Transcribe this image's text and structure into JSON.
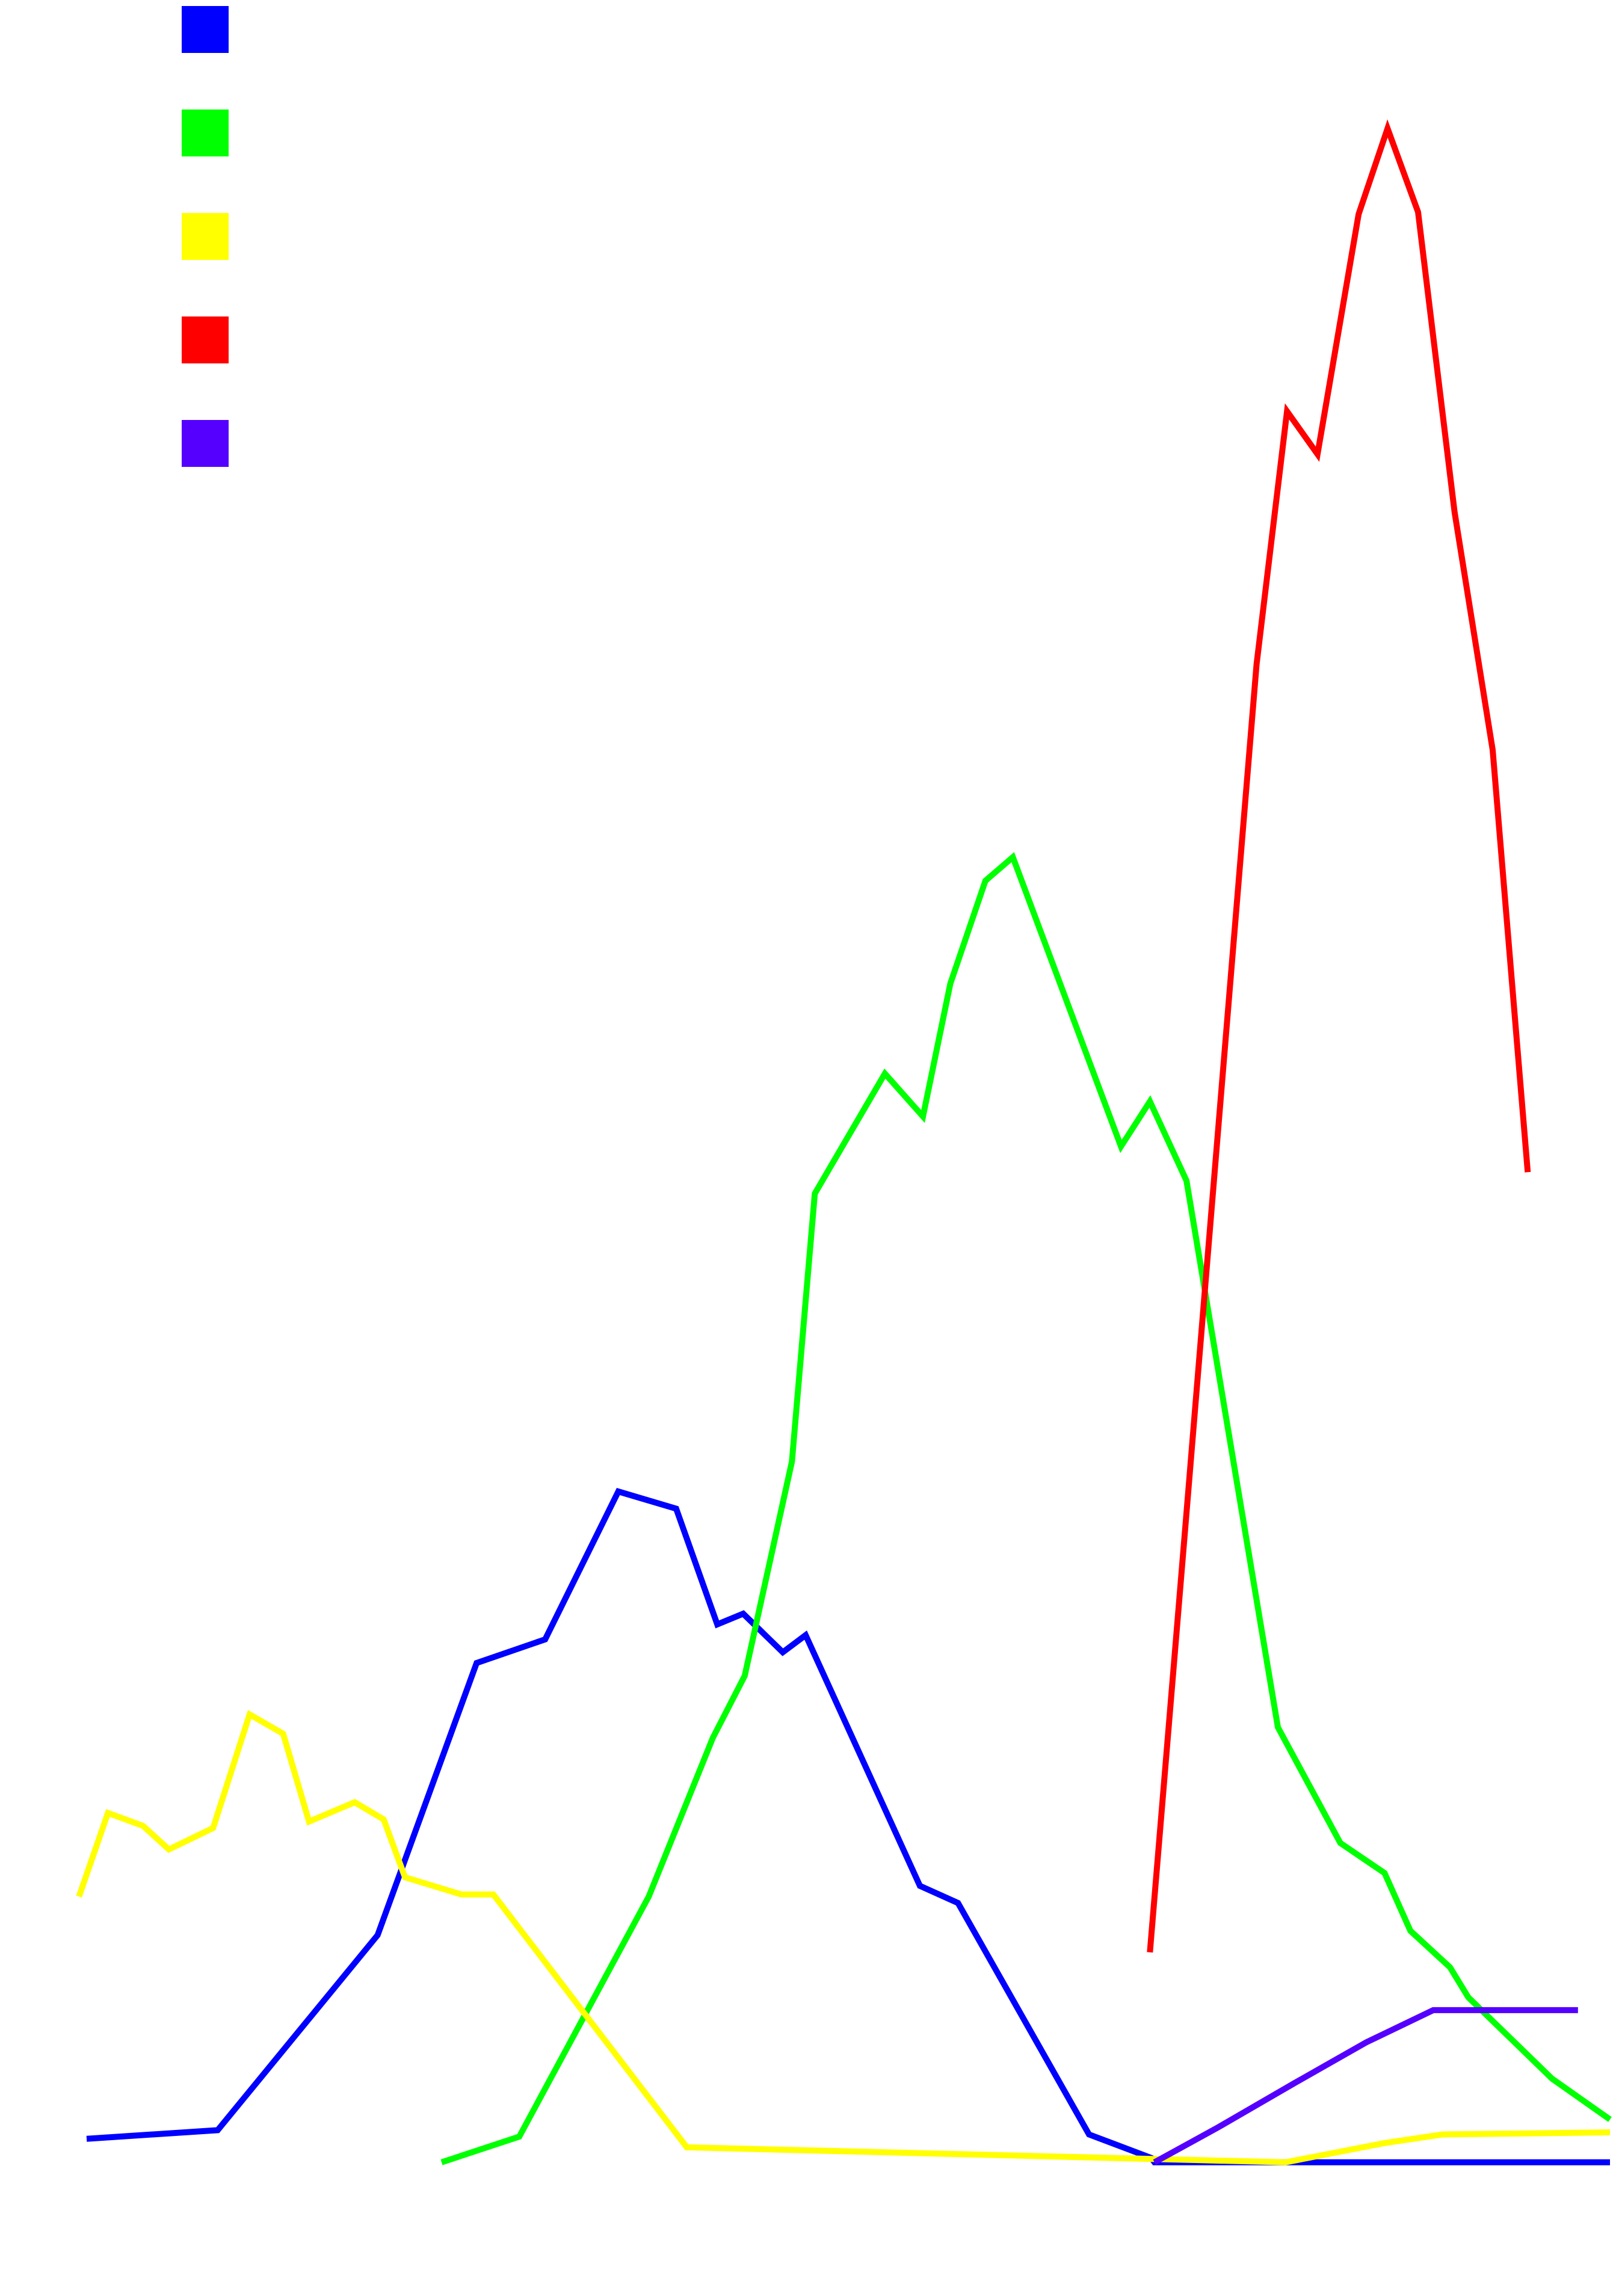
{
  "chart_data": {
    "type": "line",
    "title": "",
    "xlabel": "",
    "ylabel": "",
    "grid": false,
    "axes_visible": false,
    "legend_placement": "top-left",
    "xlim": [
      0,
      100
    ],
    "ylim": [
      0,
      100
    ],
    "series": [
      {
        "color": "#0000ff",
        "points": [
          [
            0,
            5.4
          ],
          [
            8.6,
            5.8
          ],
          [
            19.1,
            14.9
          ],
          [
            25.6,
            27.6
          ],
          [
            30.1,
            28.7
          ],
          [
            34.9,
            35.6
          ],
          [
            38.7,
            34.8
          ],
          [
            41.4,
            29.4
          ],
          [
            43.1,
            29.9
          ],
          [
            45.7,
            28.1
          ],
          [
            47.2,
            28.9
          ],
          [
            54.7,
            17.2
          ],
          [
            57.2,
            16.4
          ],
          [
            65.8,
            5.6
          ],
          [
            69.9,
            4.5
          ],
          [
            70.1,
            4.3
          ],
          [
            100,
            4.3
          ]
        ]
      },
      {
        "color": "#00ff00",
        "points": [
          [
            23.3,
            4.3
          ],
          [
            28.4,
            5.5
          ],
          [
            36.9,
            16.7
          ],
          [
            41.1,
            24.1
          ],
          [
            43.2,
            27.0
          ],
          [
            46.3,
            37.0
          ],
          [
            47.8,
            49.5
          ],
          [
            52.4,
            55.1
          ],
          [
            54.9,
            53.1
          ],
          [
            56.7,
            59.3
          ],
          [
            59.0,
            64.1
          ],
          [
            60.8,
            65.2
          ],
          [
            67.9,
            51.7
          ],
          [
            69.8,
            53.8
          ],
          [
            72.2,
            50.1
          ],
          [
            78.2,
            24.6
          ],
          [
            82.3,
            19.2
          ],
          [
            85.2,
            17.8
          ],
          [
            86.9,
            15.1
          ],
          [
            89.5,
            13.4
          ],
          [
            90.7,
            12.0
          ],
          [
            96.2,
            8.2
          ],
          [
            100,
            6.3
          ]
        ]
      },
      {
        "color": "#ffff00",
        "points": [
          [
            -0.5,
            16.7
          ],
          [
            1.4,
            20.6
          ],
          [
            3.7,
            20.0
          ],
          [
            5.4,
            18.9
          ],
          [
            8.3,
            19.9
          ],
          [
            10.7,
            25.2
          ],
          [
            12.9,
            24.3
          ],
          [
            14.6,
            20.2
          ],
          [
            17.6,
            21.1
          ],
          [
            19.5,
            20.3
          ],
          [
            20.9,
            17.6
          ],
          [
            24.6,
            16.8
          ],
          [
            26.7,
            16.8
          ],
          [
            39.4,
            5.0
          ],
          [
            73.2,
            4.4
          ],
          [
            78.7,
            4.3
          ],
          [
            85.2,
            5.2
          ],
          [
            89.0,
            5.6
          ],
          [
            100,
            5.7
          ]
        ]
      },
      {
        "color": "#ff0000",
        "points": [
          [
            69.8,
            14.1
          ],
          [
            72.2,
            34.6
          ],
          [
            76.8,
            74.2
          ],
          [
            78.8,
            86.0
          ],
          [
            80.8,
            84.0
          ],
          [
            83.5,
            95.2
          ],
          [
            85.4,
            99.2
          ],
          [
            87.4,
            95.3
          ],
          [
            89.8,
            81.3
          ],
          [
            92.3,
            70.2
          ],
          [
            94.6,
            50.5
          ]
        ]
      },
      {
        "color": "#5500ff",
        "points": [
          [
            70.1,
            4.3
          ],
          [
            74.2,
            5.9
          ],
          [
            79.3,
            8.0
          ],
          [
            84.0,
            9.9
          ],
          [
            88.4,
            11.4
          ],
          [
            97.9,
            11.4
          ]
        ]
      }
    ]
  }
}
